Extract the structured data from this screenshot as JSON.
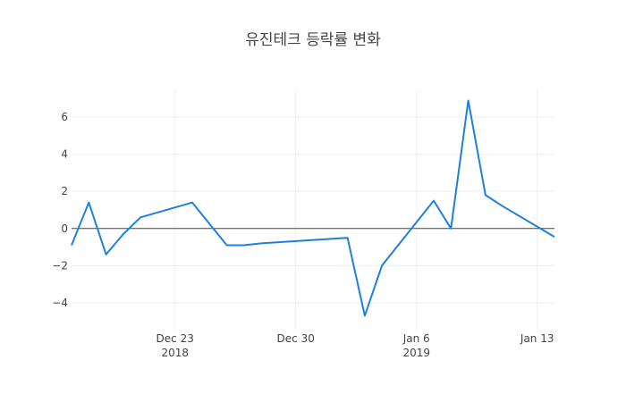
{
  "chart_data": {
    "type": "line",
    "title": "유진테크 등락률 변화",
    "xlabel": "",
    "ylabel": "",
    "x": [
      "2018-12-17",
      "2018-12-18",
      "2018-12-19",
      "2018-12-20",
      "2018-12-21",
      "2018-12-24",
      "2018-12-26",
      "2018-12-27",
      "2018-12-28",
      "2019-01-02",
      "2019-01-03",
      "2019-01-04",
      "2019-01-07",
      "2019-01-08",
      "2019-01-09",
      "2019-01-10",
      "2019-01-11",
      "2019-01-14"
    ],
    "series": [
      {
        "name": "",
        "values": [
          -0.9,
          1.4,
          -1.4,
          -0.3,
          0.6,
          1.4,
          -0.9,
          -0.9,
          -0.8,
          -0.5,
          -4.7,
          -2.0,
          1.5,
          0.0,
          6.9,
          1.8,
          1.2,
          -0.45
        ]
      }
    ],
    "xlim": [
      "2018-12-17",
      "2019-01-14"
    ],
    "ylim": [
      -5.5,
      7.5
    ],
    "x_ticks": [
      {
        "date": "2018-12-23",
        "label": "Dec 23",
        "sublabel": "2018"
      },
      {
        "date": "2018-12-30",
        "label": "Dec 30",
        "sublabel": ""
      },
      {
        "date": "2019-01-06",
        "label": "Jan 6",
        "sublabel": "2019"
      },
      {
        "date": "2019-01-13",
        "label": "Jan 13",
        "sublabel": ""
      }
    ],
    "y_ticks": [
      {
        "value": 6,
        "label": "6"
      },
      {
        "value": 4,
        "label": "4"
      },
      {
        "value": 2,
        "label": "2"
      },
      {
        "value": 0,
        "label": "0"
      },
      {
        "value": -2,
        "label": "−2"
      },
      {
        "value": -4,
        "label": "−4"
      }
    ],
    "grid": true,
    "zero_line": true,
    "line_color": "#1f7fe0",
    "grid_color": "#eeeeee",
    "zero_line_color": "#444444",
    "text_color": "#444444"
  }
}
